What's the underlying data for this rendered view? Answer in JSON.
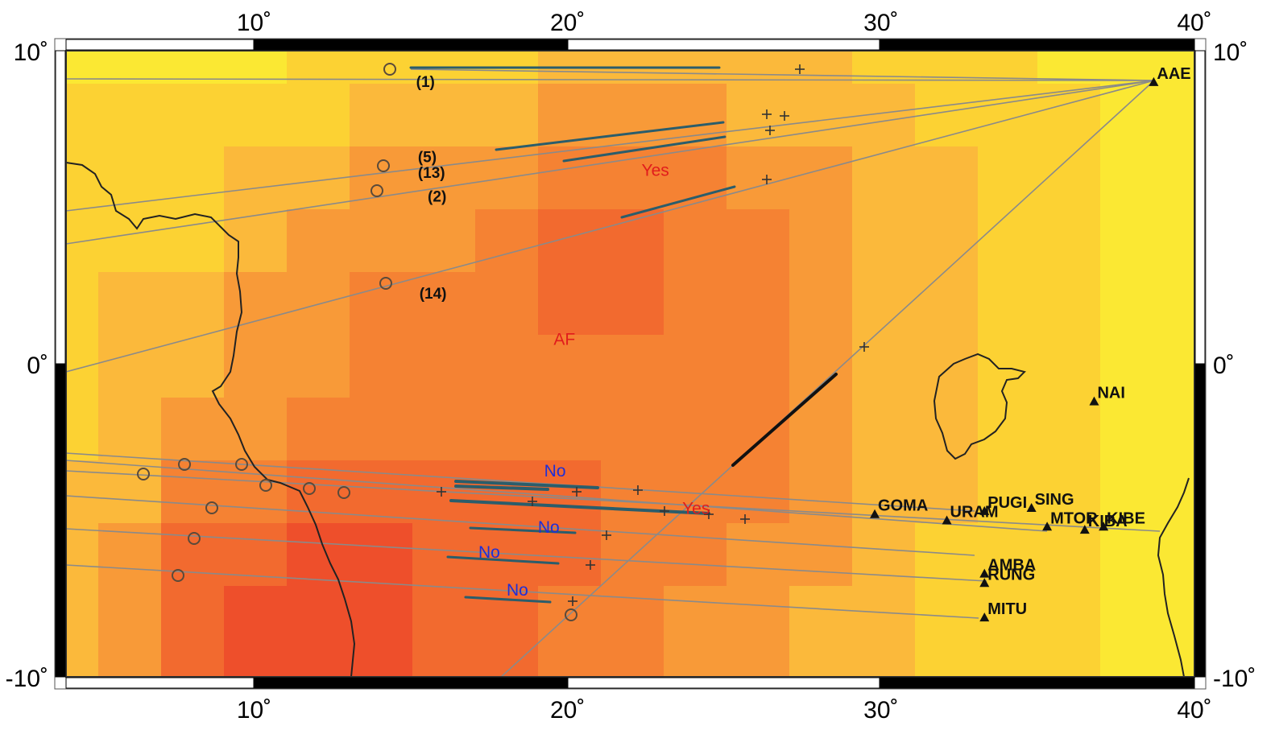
{
  "map": {
    "lon_range": [
      4,
      40
    ],
    "lat_range": [
      -10,
      10
    ],
    "colors": {
      "c1": "#fbe833",
      "c2": "#fcd233",
      "c3": "#fbb93b",
      "c4": "#f89a38",
      "c5": "#f58233",
      "c6": "#f26a2f",
      "c7": "#ee4f2b",
      "coast": "#222222",
      "path": "#8a8a8a",
      "segment": "#2b5d6b",
      "black_segment": "#111111",
      "yes": "#e11c1c",
      "no": "#1e2fd8"
    }
  },
  "axes": {
    "top": [
      {
        "lon": 10,
        "label": "10˚"
      },
      {
        "lon": 20,
        "label": "20˚"
      },
      {
        "lon": 30,
        "label": "30˚"
      },
      {
        "lon": 40,
        "label": "40˚"
      }
    ],
    "bottom": [
      {
        "lon": 10,
        "label": "10˚"
      },
      {
        "lon": 20,
        "label": "20˚"
      },
      {
        "lon": 30,
        "label": "30˚"
      },
      {
        "lon": 40,
        "label": "40˚"
      }
    ],
    "left": [
      {
        "lat": 10,
        "label": "10˚"
      },
      {
        "lat": 0,
        "label": "0˚"
      },
      {
        "lat": -10,
        "label": "-10˚"
      }
    ],
    "right": [
      {
        "lat": 10,
        "label": "10˚"
      },
      {
        "lat": 0,
        "label": "0˚"
      },
      {
        "lat": -10,
        "label": "-10˚"
      }
    ]
  },
  "stations": [
    {
      "code": "AAE",
      "lon": 38.7,
      "lat": 9.0
    },
    {
      "code": "NAI",
      "lon": 36.8,
      "lat": -1.2
    },
    {
      "code": "GOMA",
      "lon": 29.8,
      "lat": -4.8
    },
    {
      "code": "URAM",
      "lon": 32.1,
      "lat": -5.0
    },
    {
      "code": "PUGI",
      "lon": 33.3,
      "lat": -4.7
    },
    {
      "code": "SING",
      "lon": 34.8,
      "lat": -4.6
    },
    {
      "code": "MTOR",
      "lon": 35.3,
      "lat": -5.2
    },
    {
      "code": "KIBE",
      "lon": 37.1,
      "lat": -5.2
    },
    {
      "code": "KIBA",
      "lon": 36.5,
      "lat": -5.3
    },
    {
      "code": "AMBA",
      "lon": 33.3,
      "lat": -6.7
    },
    {
      "code": "RUNG",
      "lon": 33.3,
      "lat": -7.0
    },
    {
      "code": "MITU",
      "lon": 33.3,
      "lat": -8.1
    }
  ],
  "events": [
    {
      "label": "(1)",
      "lon": 14.5,
      "lat": 9.3
    },
    {
      "label": "(5)",
      "lon": 14.3,
      "lat": 6.6
    },
    {
      "label": "(13)",
      "lon": 14.3,
      "lat": 6.3
    },
    {
      "label": "(2)",
      "lon": 14.1,
      "lat": 5.8
    },
    {
      "label": "(14)",
      "lon": 14.4,
      "lat": 2.7
    }
  ],
  "annotations": [
    {
      "text": "Yes",
      "color": "yes",
      "lon": 22.8,
      "lat": 6.0
    },
    {
      "text": "AF",
      "color": "yes",
      "lon": 19.9,
      "lat": 0.6
    },
    {
      "text": "Yes",
      "color": "yes",
      "lon": 24.1,
      "lat": -4.8
    },
    {
      "text": "No",
      "color": "no",
      "lon": 19.6,
      "lat": -3.6
    },
    {
      "text": "No",
      "color": "no",
      "lon": 19.4,
      "lat": -5.4
    },
    {
      "text": "No",
      "color": "no",
      "lon": 17.5,
      "lat": -6.2
    },
    {
      "text": "No",
      "color": "no",
      "lon": 18.4,
      "lat": -7.4
    }
  ]
}
